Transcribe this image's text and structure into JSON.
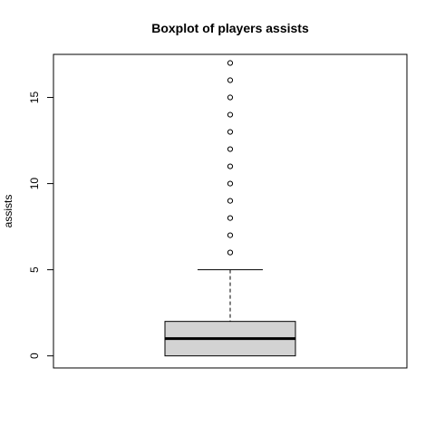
{
  "chart_data": {
    "type": "boxplot",
    "title": "Boxplot of players assists",
    "xlabel": "",
    "ylabel": "assists",
    "ylim": [
      -0.7,
      17.5
    ],
    "y_ticks": [
      0,
      5,
      10,
      15
    ],
    "box": {
      "lower_whisker": 0,
      "q1": 0,
      "median": 1,
      "q3": 2,
      "upper_whisker": 5,
      "outliers": [
        6,
        7,
        8,
        9,
        10,
        11,
        12,
        13,
        14,
        15,
        16,
        17
      ]
    },
    "grid": false,
    "legend": "none",
    "colors": {
      "box_fill": "#d3d3d3",
      "stroke": "#000000"
    }
  }
}
